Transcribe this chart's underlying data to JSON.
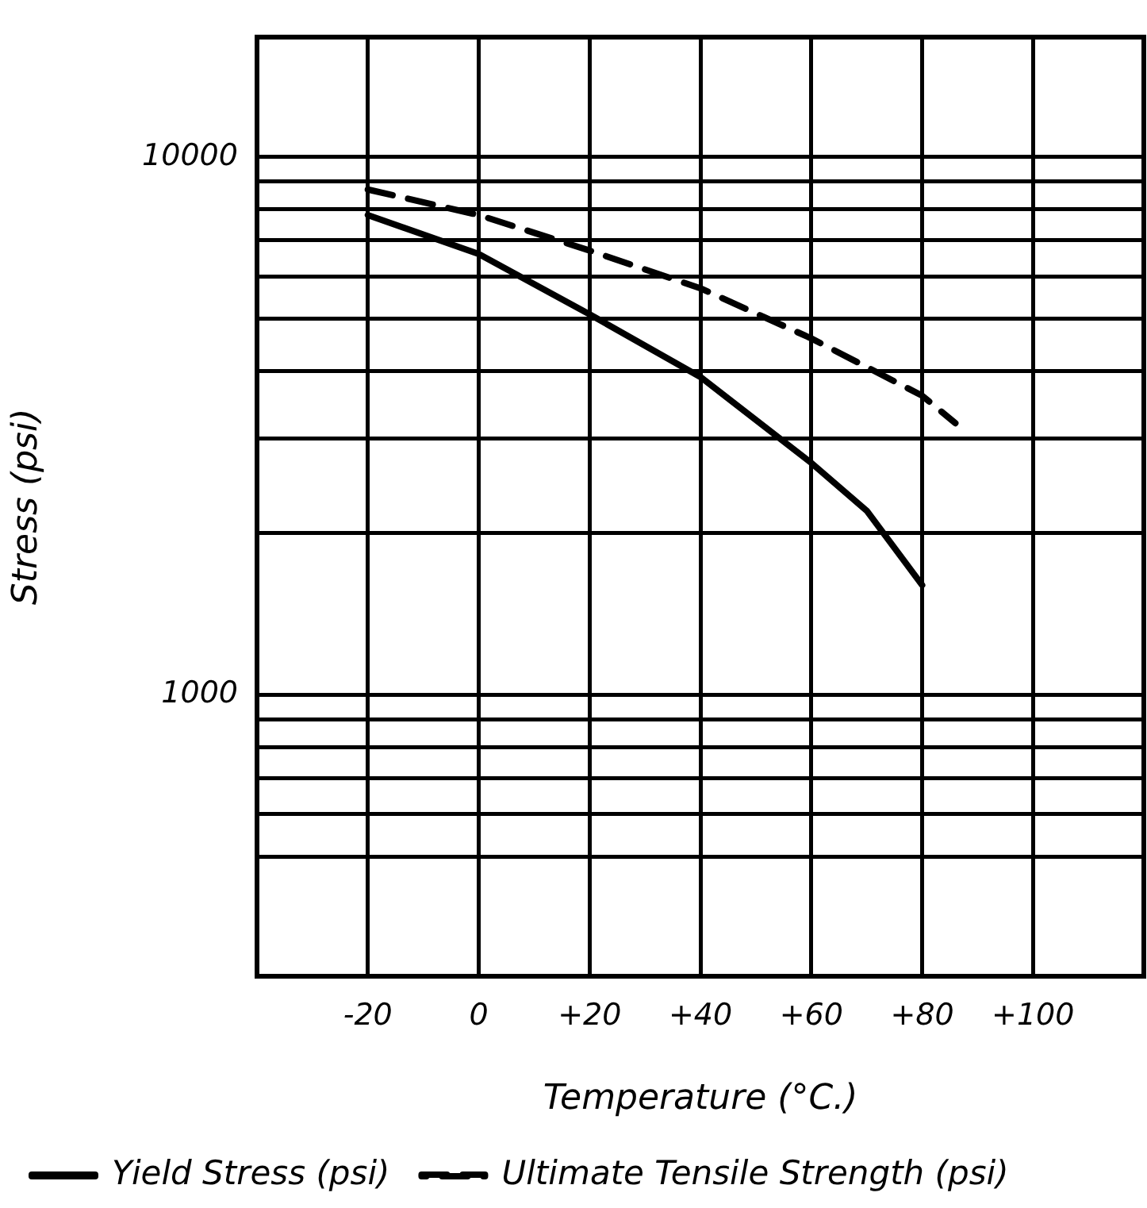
{
  "chart_data": {
    "type": "line",
    "xlabel": "Temperature (°C.)",
    "ylabel": "Stress (psi)",
    "xlim": [
      -40,
      120
    ],
    "xticks": [
      {
        "value": -20,
        "label": "-20"
      },
      0,
      {
        "value": 20,
        "label": "+20"
      },
      {
        "value": 40,
        "label": "+40"
      },
      {
        "value": 60,
        "label": "+60"
      },
      {
        "value": 80,
        "label": "+80"
      },
      {
        "value": 100,
        "label": "+100"
      }
    ],
    "ylim": [
      300,
      16700
    ],
    "log": true,
    "yticks": [
      {
        "value": 500,
        "label": null
      },
      {
        "value": 600,
        "label": null
      },
      {
        "value": 700,
        "label": null
      },
      {
        "value": 800,
        "label": null
      },
      {
        "value": 900,
        "label": null
      },
      1000,
      {
        "value": 2000,
        "label": null
      },
      {
        "value": 3000,
        "label": null
      },
      {
        "value": 4000,
        "label": null
      },
      {
        "value": 5000,
        "label": null
      },
      {
        "value": 6000,
        "label": null
      },
      {
        "value": 7000,
        "label": null
      },
      {
        "value": 8000,
        "label": null
      },
      {
        "value": 9000,
        "label": null
      },
      10000
    ],
    "grid": true,
    "legend": "bottom",
    "series": [
      {
        "name": "Yield Stress (psi)",
        "color": "#000000",
        "line_style": "solid",
        "x": [
          -20,
          0,
          20,
          40,
          60,
          70,
          80
        ],
        "values": [
          7800,
          6600,
          5100,
          3900,
          2700,
          2200,
          1600
        ]
      },
      {
        "name": "Ultimate Tensile Strength (psi)",
        "color": "#000000",
        "line_style": "dashed",
        "x": [
          -20,
          0,
          20,
          40,
          60,
          80,
          86
        ],
        "values": [
          8700,
          7800,
          6700,
          5700,
          4600,
          3600,
          3200
        ]
      }
    ]
  }
}
